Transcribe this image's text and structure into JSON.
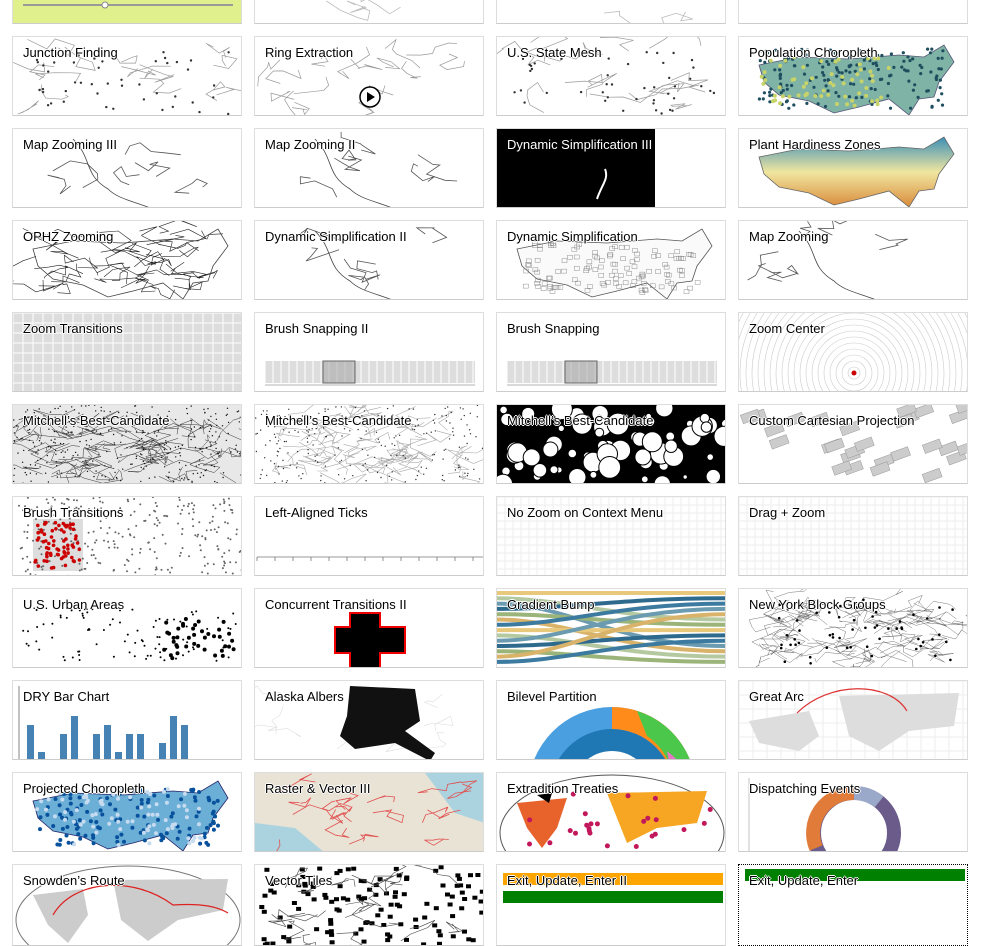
{
  "gallery": {
    "cards": [
      {
        "title": "",
        "theme": "slider"
      },
      {
        "title": "",
        "theme": "map"
      },
      {
        "title": "",
        "theme": "map"
      },
      {
        "title": "",
        "theme": "blank"
      },
      {
        "title": "Junction Finding",
        "theme": "map-dots"
      },
      {
        "title": "Ring Extraction",
        "theme": "map-play"
      },
      {
        "title": "U.S. State Mesh",
        "theme": "map-dots"
      },
      {
        "title": "Population Choropleth",
        "theme": "choropleth-teal"
      },
      {
        "title": "Map Zooming III",
        "theme": "coast"
      },
      {
        "title": "Map Zooming II",
        "theme": "coast"
      },
      {
        "title": "Dynamic Simplification III",
        "theme": "dark-coast"
      },
      {
        "title": "Plant Hardiness Zones",
        "theme": "hardiness"
      },
      {
        "title": "OPHZ Zooming",
        "theme": "contours"
      },
      {
        "title": "Dynamic Simplification II",
        "theme": "coast"
      },
      {
        "title": "Dynamic Simplification",
        "theme": "counties"
      },
      {
        "title": "Map Zooming",
        "theme": "coast"
      },
      {
        "title": "Zoom Transitions",
        "theme": "grid-gray"
      },
      {
        "title": "Brush Snapping II",
        "theme": "brush"
      },
      {
        "title": "Brush Snapping",
        "theme": "brush"
      },
      {
        "title": "Zoom Center",
        "theme": "rings"
      },
      {
        "title": "Mitchell’s Best-Candidate",
        "theme": "voronoi-dense"
      },
      {
        "title": "Mitchell’s Best-Candidate",
        "theme": "voronoi"
      },
      {
        "title": "Mitchell’s Best-Candidate",
        "theme": "circles"
      },
      {
        "title": "Custom Cartesian Projection",
        "theme": "blocks"
      },
      {
        "title": "Brush Transitions",
        "theme": "scatter-red"
      },
      {
        "title": "Left-Aligned Ticks",
        "theme": "axis"
      },
      {
        "title": "No Zoom on Context Menu",
        "theme": "grid-fine"
      },
      {
        "title": "Drag + Zoom",
        "theme": "grid-fine"
      },
      {
        "title": "U.S. Urban Areas",
        "theme": "urban"
      },
      {
        "title": "Concurrent Transitions II",
        "theme": "cross"
      },
      {
        "title": "Gradient Bump",
        "theme": "bump"
      },
      {
        "title": "New York Block Groups",
        "theme": "ny"
      },
      {
        "title": "DRY Bar Chart",
        "theme": "bars"
      },
      {
        "title": "Alaska Albers",
        "theme": "alaska"
      },
      {
        "title": "Bilevel Partition",
        "theme": "partition"
      },
      {
        "title": "Great Arc",
        "theme": "world-arc"
      },
      {
        "title": "Projected Choropleth",
        "theme": "choropleth-blue"
      },
      {
        "title": "Raster & Vector III",
        "theme": "raster"
      },
      {
        "title": "Extradition Treaties",
        "theme": "treaties"
      },
      {
        "title": "Dispatching Events",
        "theme": "donut"
      },
      {
        "title": "Snowden’s Route",
        "theme": "world-route"
      },
      {
        "title": "Vector Tiles",
        "theme": "tiles"
      },
      {
        "title": "Exit, Update, Enter II",
        "theme": "eue2"
      },
      {
        "title": "Exit, Update, Enter",
        "theme": "eue"
      }
    ]
  },
  "colors": {
    "card_border": "#dddddd",
    "teal_dark": "#1f4e5f",
    "hardiness_warm": "#d98b3a",
    "hardiness_cool": "#3a8fb7",
    "bar_blue": "#4682b4",
    "brand_red": "#cc0000",
    "eue_orange": "#ffa500",
    "eue_green": "#008000"
  }
}
